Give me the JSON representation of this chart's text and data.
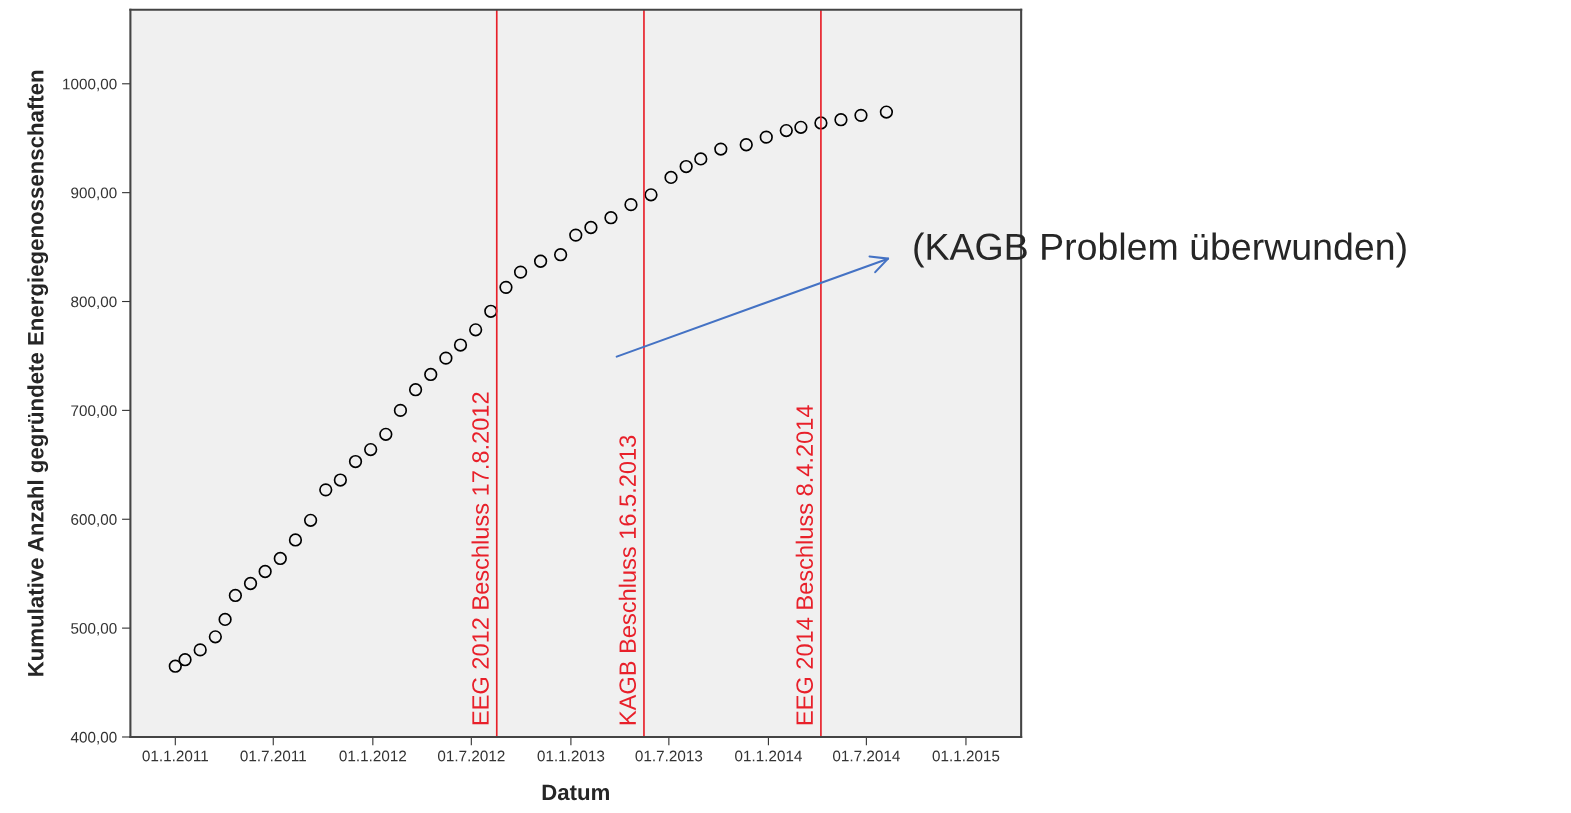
{
  "chart_data": {
    "type": "scatter",
    "xlabel": "Datum",
    "ylabel": "Kumulative Anzahl gegründete Energiegenossenschaften",
    "x": [
      "2011-01-01",
      "2011-01-19",
      "2011-02-16",
      "2011-03-16",
      "2011-04-03",
      "2011-04-22",
      "2011-05-20",
      "2011-06-16",
      "2011-07-14",
      "2011-08-11",
      "2011-09-08",
      "2011-10-06",
      "2011-11-02",
      "2011-11-30",
      "2011-12-28",
      "2012-01-25",
      "2012-02-21",
      "2012-03-20",
      "2012-04-17",
      "2012-05-15",
      "2012-06-11",
      "2012-07-09",
      "2012-08-06",
      "2012-09-03",
      "2012-09-30",
      "2012-11-06",
      "2012-12-13",
      "2013-01-10",
      "2013-02-07",
      "2013-03-16",
      "2013-04-22",
      "2013-05-29",
      "2013-07-05",
      "2013-08-02",
      "2013-08-29",
      "2013-10-05",
      "2013-11-21",
      "2013-12-28",
      "2014-02-03",
      "2014-03-02",
      "2014-04-08",
      "2014-05-15",
      "2014-06-21",
      "2014-08-07"
    ],
    "series": [
      {
        "color": "#000000",
        "values": [
          465,
          471,
          480,
          492,
          508,
          530,
          541,
          552,
          564,
          581,
          599,
          627,
          636,
          653,
          664,
          678,
          700,
          719,
          733,
          748,
          760,
          774,
          791,
          813,
          827,
          837,
          843,
          861,
          868,
          877,
          889,
          898,
          914,
          924,
          931,
          940,
          944,
          951,
          957,
          960,
          964,
          967,
          971,
          974
        ]
      }
    ],
    "marker": "circle",
    "grid": false,
    "xlim": [
      "2010-10-10",
      "2015-04-13"
    ],
    "xticks": [
      {
        "value": "2011-01-01",
        "label": "01.1.2011"
      },
      {
        "value": "2011-07-01",
        "label": "01.7.2011"
      },
      {
        "value": "2012-01-01",
        "label": "01.1.2012"
      },
      {
        "value": "2012-07-01",
        "label": "01.7.2012"
      },
      {
        "value": "2013-01-01",
        "label": "01.1.2013"
      },
      {
        "value": "2013-07-01",
        "label": "01.7.2013"
      },
      {
        "value": "2014-01-01",
        "label": "01.1.2014"
      },
      {
        "value": "2014-07-01",
        "label": "01.7.2014"
      },
      {
        "value": "2015-01-01",
        "label": "01.1.2015"
      }
    ],
    "ylim": [
      400,
      1068
    ],
    "yticks": [
      {
        "value": 400,
        "label": "400,00"
      },
      {
        "value": 500,
        "label": "500,00"
      },
      {
        "value": 600,
        "label": "600,00"
      },
      {
        "value": 700,
        "label": "700,00"
      },
      {
        "value": 800,
        "label": "800,00"
      },
      {
        "value": 900,
        "label": "900,00"
      },
      {
        "value": 1000,
        "label": "1000,00"
      }
    ],
    "ref_lines": [
      {
        "axis": "x",
        "value": "2012-08-17",
        "label": "EEG 2012 Beschluss 17.8.2012",
        "color": "#e8202a"
      },
      {
        "axis": "x",
        "value": "2013-05-16",
        "label": "KAGB Beschluss 16.5.2013",
        "color": "#e8202a"
      },
      {
        "axis": "x",
        "value": "2014-04-08",
        "label": "EEG 2014 Beschluss 8.4.2014",
        "color": "#e8202a"
      }
    ],
    "annotations": [
      "(KAGB Problem überwunden)"
    ]
  }
}
